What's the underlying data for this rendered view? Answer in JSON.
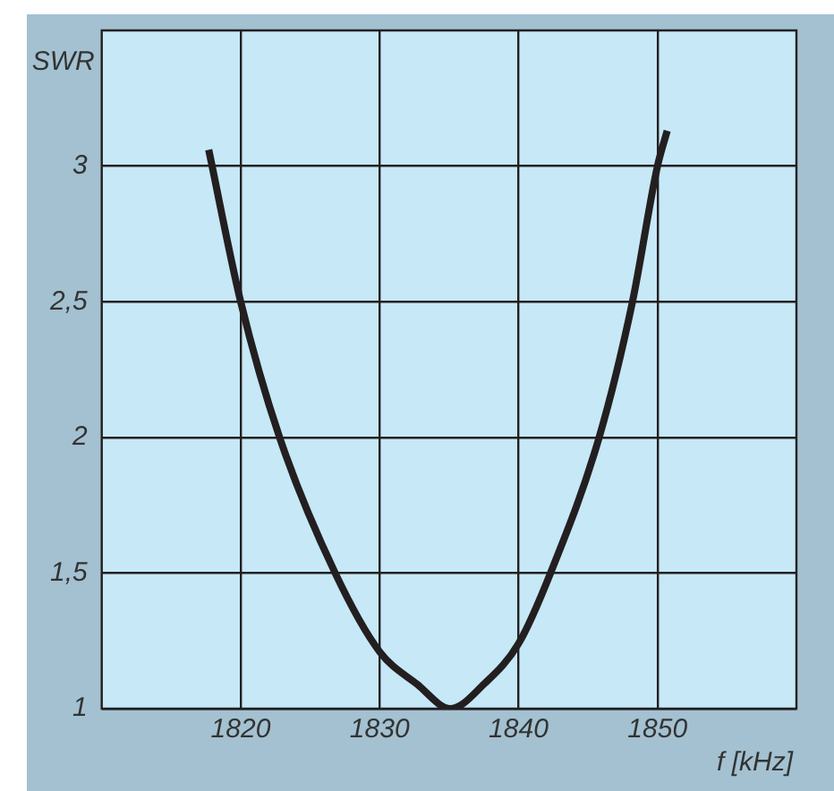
{
  "chart_data": {
    "type": "line",
    "xlabel": "f [kHz]",
    "ylabel": "SWR",
    "xlim": [
      1810,
      1860
    ],
    "xticks": [
      1820,
      1830,
      1840,
      1850
    ],
    "ylim": [
      1,
      3.5
    ],
    "yticks": [
      1,
      {
        "value": 1.5,
        "label": "1,5"
      },
      2,
      {
        "value": 2.5,
        "label": "2,5"
      },
      3
    ],
    "grid": true,
    "legend": false,
    "marker": "none",
    "line_style": "solid",
    "series": [
      {
        "color": "#231f20",
        "x": [
          1817.7,
          1820,
          1822.8,
          1826.8,
          1830,
          1832.7,
          1835.1,
          1837.5,
          1840,
          1842.3,
          1845.8,
          1848.2,
          1850,
          1850.7
        ],
        "values": [
          3.06,
          2.5,
          2.0,
          1.5,
          1.21,
          1.09,
          1.0,
          1.09,
          1.24,
          1.5,
          2.0,
          2.5,
          3.0,
          3.13
        ]
      }
    ]
  }
}
